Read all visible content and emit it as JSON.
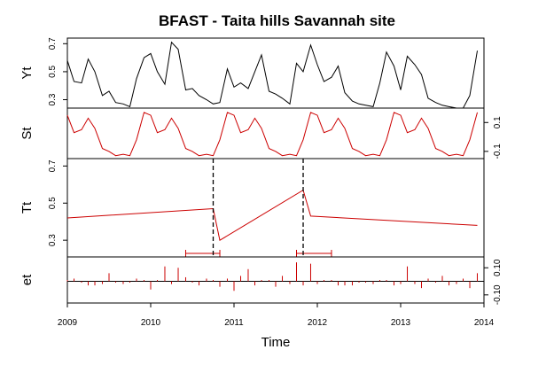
{
  "chart_data": {
    "type": "line",
    "title": "BFAST - Taita hills Savannah site",
    "xlabel": "Time",
    "xlim": [
      2009,
      2014
    ],
    "x_ticks": [
      "2009",
      "2010",
      "2011",
      "2012",
      "2013",
      "2014"
    ],
    "breakpoints": [
      2010.75,
      2011.83
    ],
    "break_confidence_intervals": [
      [
        2010.42,
        2010.83
      ],
      [
        2011.75,
        2012.17
      ]
    ],
    "colors": {
      "axis": "#000000",
      "data": "#000000",
      "fitted": "#cc0000",
      "breakpoint": "#000000"
    },
    "panels": [
      {
        "ylabel": "Yt",
        "y_ticks": [
          "0.3",
          "0.5",
          "0.7"
        ],
        "y_tick_values": [
          0.3,
          0.5,
          0.7
        ],
        "ylim": [
          0.24,
          0.74
        ],
        "tick_side": "left",
        "style": "line",
        "color": "#000000",
        "x": [
          2009.0,
          2009.08,
          2009.17,
          2009.25,
          2009.33,
          2009.42,
          2009.5,
          2009.58,
          2009.67,
          2009.75,
          2009.83,
          2009.92,
          2010.0,
          2010.08,
          2010.17,
          2010.25,
          2010.33,
          2010.42,
          2010.5,
          2010.58,
          2010.67,
          2010.75,
          2010.83,
          2010.92,
          2011.0,
          2011.08,
          2011.17,
          2011.25,
          2011.33,
          2011.42,
          2011.5,
          2011.58,
          2011.67,
          2011.75,
          2011.83,
          2011.92,
          2012.0,
          2012.08,
          2012.17,
          2012.25,
          2012.33,
          2012.42,
          2012.5,
          2012.58,
          2012.67,
          2012.75,
          2012.83,
          2012.92,
          2013.0,
          2013.08,
          2013.17,
          2013.25,
          2013.33,
          2013.42,
          2013.5,
          2013.58,
          2013.67,
          2013.75,
          2013.83,
          2013.92
        ],
        "values": [
          0.58,
          0.43,
          0.42,
          0.59,
          0.5,
          0.33,
          0.36,
          0.28,
          0.27,
          0.25,
          0.45,
          0.6,
          0.63,
          0.5,
          0.41,
          0.71,
          0.66,
          0.37,
          0.38,
          0.33,
          0.3,
          0.27,
          0.28,
          0.52,
          0.39,
          0.42,
          0.38,
          0.5,
          0.62,
          0.36,
          0.34,
          0.31,
          0.27,
          0.56,
          0.5,
          0.69,
          0.55,
          0.43,
          0.46,
          0.54,
          0.35,
          0.29,
          0.27,
          0.26,
          0.25,
          0.42,
          0.64,
          0.54,
          0.37,
          0.61,
          0.55,
          0.48,
          0.31,
          0.28,
          0.26,
          0.25,
          0.24,
          0.24,
          0.33,
          0.65
        ]
      },
      {
        "ylabel": "St",
        "y_ticks": [
          "-0.1",
          "0.1"
        ],
        "y_tick_values": [
          -0.1,
          0.1
        ],
        "ylim": [
          -0.15,
          0.2
        ],
        "tick_side": "right",
        "style": "line",
        "color": "#cc0000",
        "x": [
          2009.0,
          2009.08,
          2009.17,
          2009.25,
          2009.33,
          2009.42,
          2009.5,
          2009.58,
          2009.67,
          2009.75,
          2009.83,
          2009.92,
          2010.0,
          2010.08,
          2010.17,
          2010.25,
          2010.33,
          2010.42,
          2010.5,
          2010.58,
          2010.67,
          2010.75,
          2010.83,
          2010.92,
          2011.0,
          2011.08,
          2011.17,
          2011.25,
          2011.33,
          2011.42,
          2011.5,
          2011.58,
          2011.67,
          2011.75,
          2011.83,
          2011.92,
          2012.0,
          2012.08,
          2012.17,
          2012.25,
          2012.33,
          2012.42,
          2012.5,
          2012.58,
          2012.67,
          2012.75,
          2012.83,
          2012.92,
          2013.0,
          2013.08,
          2013.17,
          2013.25,
          2013.33,
          2013.42,
          2013.5,
          2013.58,
          2013.67,
          2013.75,
          2013.83,
          2013.92
        ],
        "values": [
          0.15,
          0.03,
          0.05,
          0.13,
          0.06,
          -0.08,
          -0.1,
          -0.13,
          -0.12,
          -0.13,
          -0.02,
          0.17,
          0.15,
          0.03,
          0.05,
          0.13,
          0.06,
          -0.08,
          -0.1,
          -0.13,
          -0.12,
          -0.13,
          -0.02,
          0.17,
          0.15,
          0.03,
          0.05,
          0.13,
          0.06,
          -0.08,
          -0.1,
          -0.13,
          -0.12,
          -0.13,
          -0.02,
          0.17,
          0.15,
          0.03,
          0.05,
          0.13,
          0.06,
          -0.08,
          -0.1,
          -0.13,
          -0.12,
          -0.13,
          -0.02,
          0.17,
          0.15,
          0.03,
          0.05,
          0.13,
          0.06,
          -0.08,
          -0.1,
          -0.13,
          -0.12,
          -0.13,
          -0.02,
          0.17
        ]
      },
      {
        "ylabel": "Tt",
        "y_ticks": [
          "0.3",
          "0.5",
          "0.7"
        ],
        "y_tick_values": [
          0.3,
          0.5,
          0.7
        ],
        "ylim": [
          0.21,
          0.74
        ],
        "tick_side": "left",
        "style": "line",
        "color": "#cc0000",
        "x": [
          2009.0,
          2010.75,
          2010.83,
          2011.83,
          2011.92,
          2013.92
        ],
        "values": [
          0.42,
          0.47,
          0.3,
          0.57,
          0.43,
          0.38
        ]
      },
      {
        "ylabel": "et",
        "y_ticks": [
          "-0.10",
          "0.10"
        ],
        "y_tick_values": [
          -0.1,
          0.1
        ],
        "ylim": [
          -0.16,
          0.18
        ],
        "tick_side": "right",
        "style": "spikes",
        "color": "#cc0000",
        "x": [
          2009.0,
          2009.08,
          2009.17,
          2009.25,
          2009.33,
          2009.42,
          2009.5,
          2009.58,
          2009.67,
          2009.75,
          2009.83,
          2009.92,
          2010.0,
          2010.08,
          2010.17,
          2010.25,
          2010.33,
          2010.42,
          2010.5,
          2010.58,
          2010.67,
          2010.75,
          2010.83,
          2010.92,
          2011.0,
          2011.08,
          2011.17,
          2011.25,
          2011.33,
          2011.42,
          2011.5,
          2011.58,
          2011.67,
          2011.75,
          2011.83,
          2011.92,
          2012.0,
          2012.08,
          2012.17,
          2012.25,
          2012.33,
          2012.42,
          2012.5,
          2012.58,
          2012.67,
          2012.75,
          2012.83,
          2012.92,
          2013.0,
          2013.08,
          2013.17,
          2013.25,
          2013.33,
          2013.42,
          2013.5,
          2013.58,
          2013.67,
          2013.75,
          2013.83,
          2013.92
        ],
        "values": [
          0.01,
          0.02,
          -0.01,
          -0.03,
          -0.03,
          -0.02,
          0.06,
          -0.01,
          -0.02,
          -0.01,
          0.02,
          0.01,
          -0.06,
          0.01,
          0.11,
          -0.02,
          0.1,
          0.03,
          -0.01,
          -0.03,
          0.02,
          0.01,
          -0.04,
          0.02,
          -0.07,
          0.04,
          0.09,
          -0.03,
          0.01,
          0.01,
          -0.04,
          0.04,
          -0.02,
          0.14,
          -0.03,
          0.13,
          -0.02,
          0.01,
          0.01,
          -0.03,
          -0.03,
          -0.03,
          -0.01,
          -0.01,
          -0.02,
          0.01,
          0.01,
          -0.03,
          -0.02,
          0.11,
          -0.02,
          -0.05,
          0.02,
          -0.01,
          0.04,
          -0.03,
          -0.02,
          0.02,
          -0.05,
          0.06
        ]
      }
    ]
  }
}
